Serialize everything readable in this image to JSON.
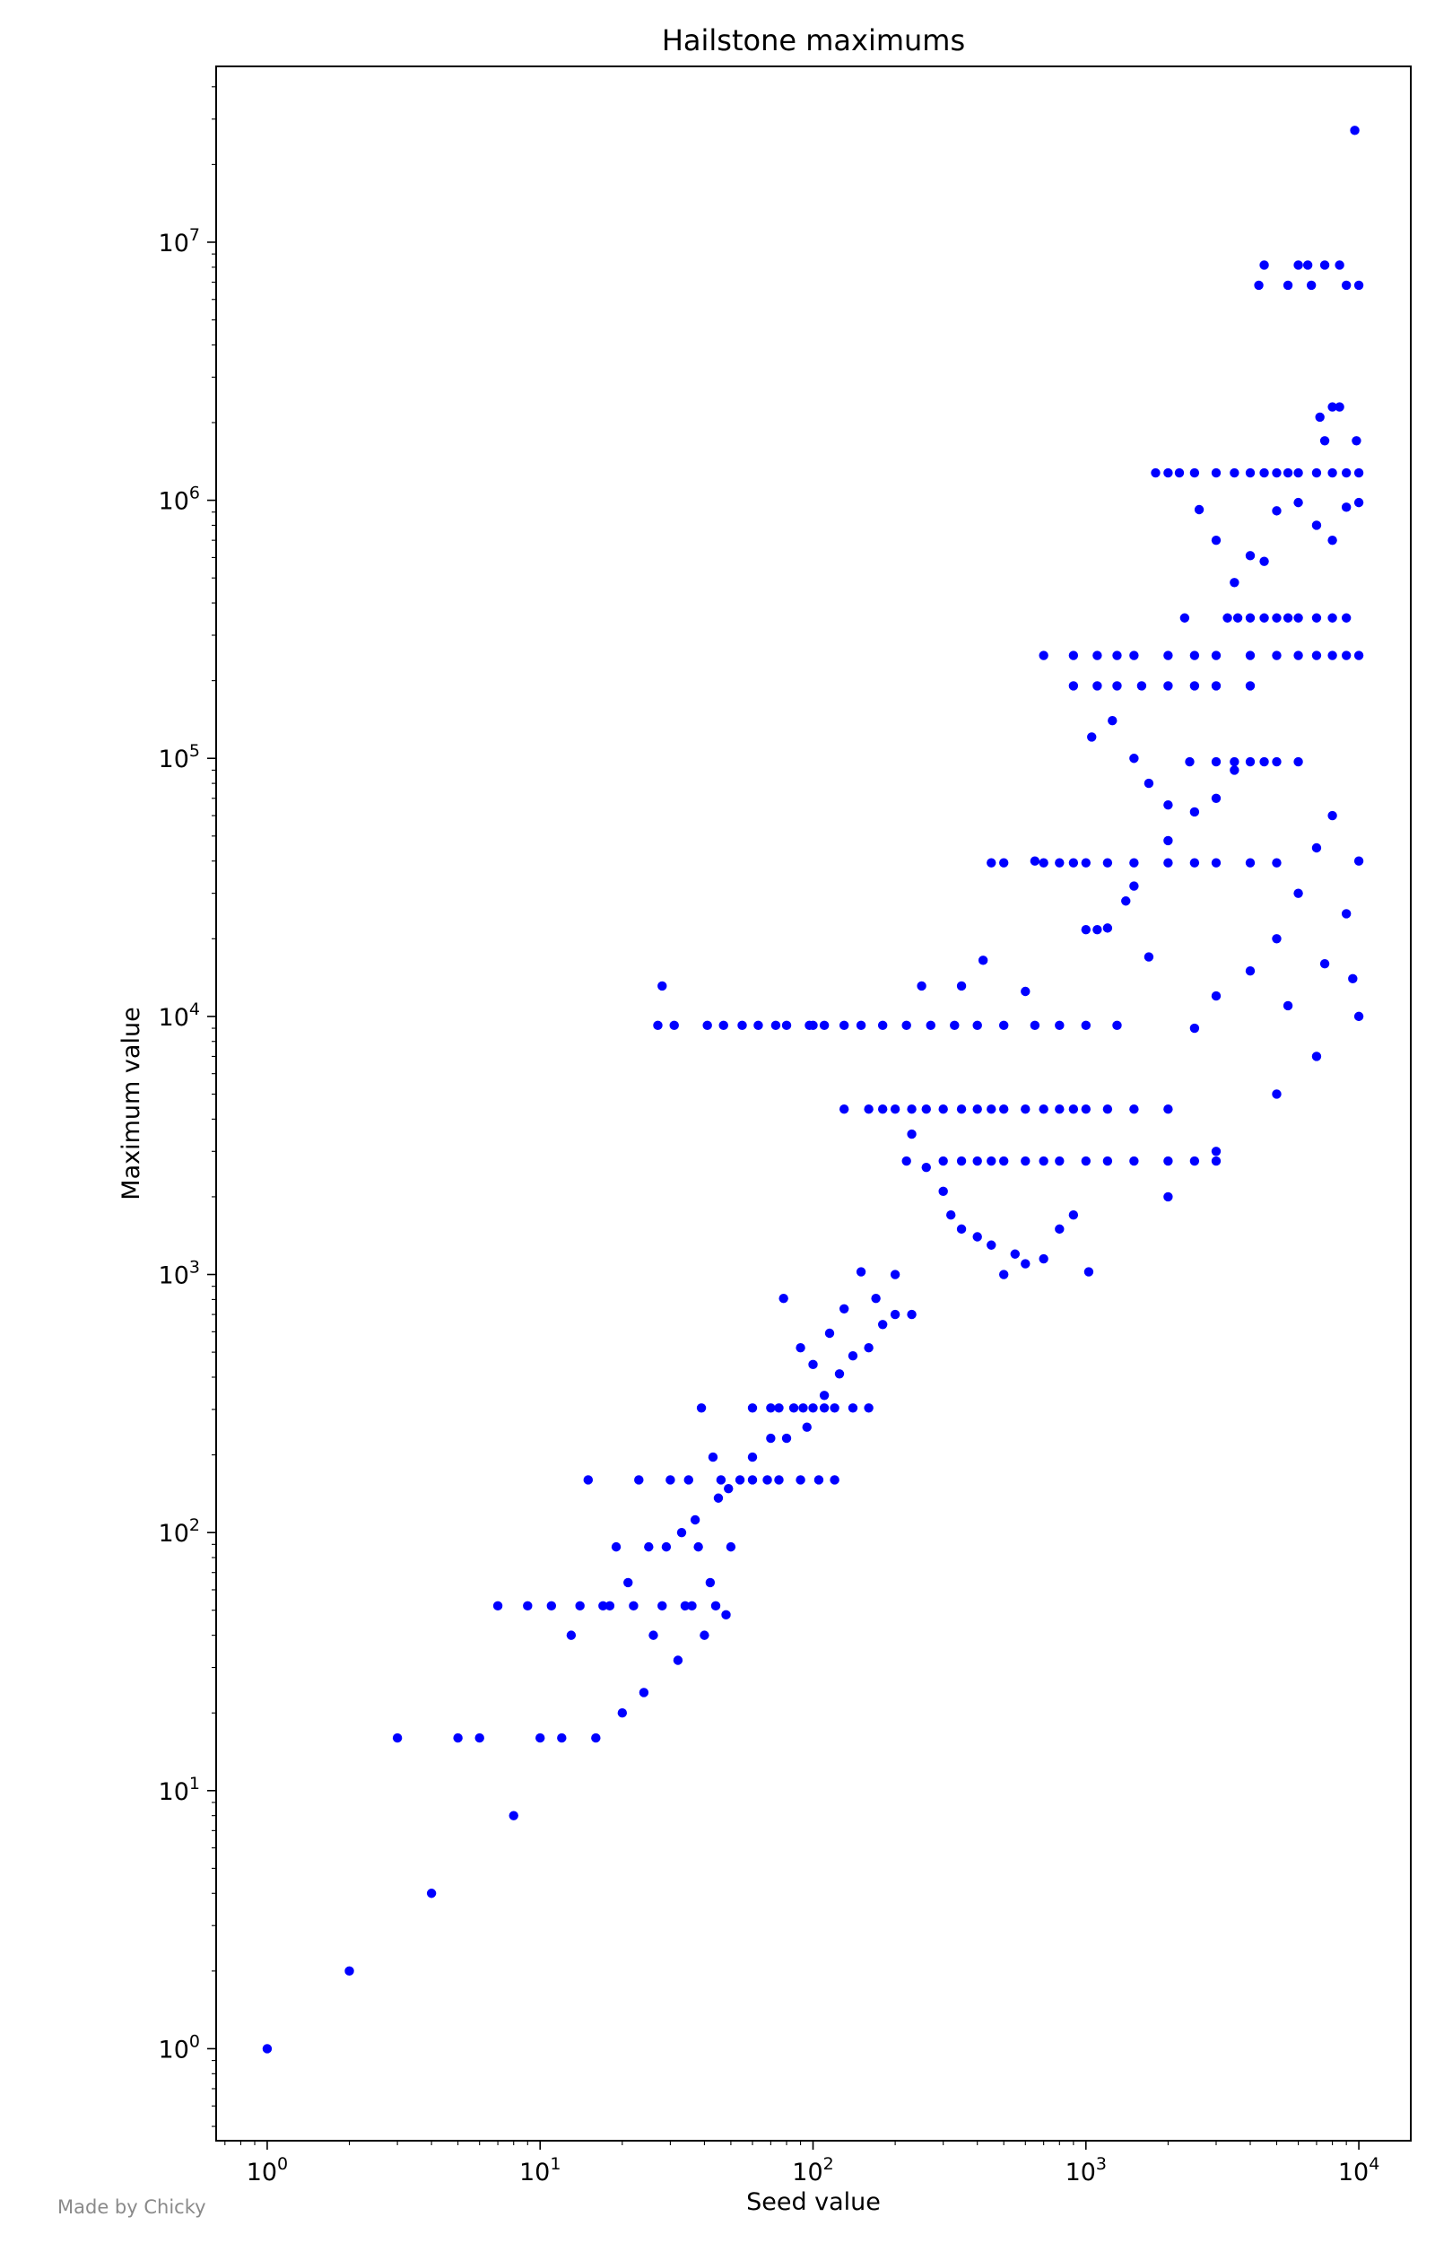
{
  "chart_data": {
    "type": "scatter",
    "title": "Hailstone maximums",
    "xlabel": "Seed value",
    "ylabel": "Maximum value",
    "xscale": "log",
    "yscale": "log",
    "xlim": [
      0.65,
      15500
    ],
    "ylim": [
      0.44,
      48000000
    ],
    "grid": false,
    "legend": "none",
    "marker_color": "#0000ff",
    "x_ticks": [
      {
        "value": 1,
        "base": "10",
        "exp": "0"
      },
      {
        "value": 10,
        "base": "10",
        "exp": "1"
      },
      {
        "value": 100,
        "base": "10",
        "exp": "2"
      },
      {
        "value": 1000,
        "base": "10",
        "exp": "3"
      },
      {
        "value": 10000,
        "base": "10",
        "exp": "4"
      }
    ],
    "y_ticks": [
      {
        "value": 1,
        "base": "10",
        "exp": "0"
      },
      {
        "value": 10,
        "base": "10",
        "exp": "1"
      },
      {
        "value": 100,
        "base": "10",
        "exp": "2"
      },
      {
        "value": 1000,
        "base": "10",
        "exp": "3"
      },
      {
        "value": 10000,
        "base": "10",
        "exp": "4"
      },
      {
        "value": 100000,
        "base": "10",
        "exp": "5"
      },
      {
        "value": 1000000,
        "base": "10",
        "exp": "6"
      },
      {
        "value": 10000000,
        "base": "10",
        "exp": "7"
      }
    ],
    "series": [
      {
        "x": [
          1,
          2,
          3,
          4,
          5,
          6,
          7,
          8,
          9,
          10,
          11,
          12,
          13,
          14,
          15,
          16,
          17,
          18,
          19,
          20,
          21,
          22,
          23,
          24,
          25,
          26,
          27,
          28,
          29,
          30,
          31,
          32,
          33,
          34,
          35,
          36,
          37,
          38,
          39,
          40,
          41,
          42,
          43,
          44,
          45,
          46,
          47,
          48,
          49,
          50
        ],
        "y": [
          1,
          2,
          16,
          4,
          16,
          16,
          52,
          8,
          52,
          16,
          52,
          16,
          40,
          52,
          160,
          16,
          52,
          52,
          88,
          20,
          64,
          52,
          160,
          24,
          88,
          40,
          9232,
          52,
          88,
          160,
          9232,
          32,
          100,
          52,
          160,
          52,
          112,
          88,
          304,
          40,
          9232,
          64,
          196,
          52,
          136,
          160,
          9232,
          48,
          148,
          88
        ]
      }
    ],
    "sample_points": [
      [
        55,
        9232
      ],
      [
        63,
        9232
      ],
      [
        73,
        9232
      ],
      [
        80,
        9232
      ],
      [
        97,
        9232
      ],
      [
        100,
        9232
      ],
      [
        110,
        9232
      ],
      [
        130,
        9232
      ],
      [
        150,
        9232
      ],
      [
        180,
        9232
      ],
      [
        220,
        9232
      ],
      [
        270,
        9232
      ],
      [
        330,
        9232
      ],
      [
        400,
        9232
      ],
      [
        500,
        9232
      ],
      [
        650,
        9232
      ],
      [
        800,
        9232
      ],
      [
        1000,
        9232
      ],
      [
        1300,
        9232
      ],
      [
        60,
        304
      ],
      [
        70,
        304
      ],
      [
        75,
        304
      ],
      [
        85,
        304
      ],
      [
        92,
        304
      ],
      [
        100,
        304
      ],
      [
        110,
        304
      ],
      [
        120,
        304
      ],
      [
        140,
        304
      ],
      [
        160,
        304
      ],
      [
        54,
        160
      ],
      [
        60,
        160
      ],
      [
        68,
        160
      ],
      [
        75,
        160
      ],
      [
        90,
        160
      ],
      [
        105,
        160
      ],
      [
        120,
        160
      ],
      [
        60,
        196
      ],
      [
        70,
        232
      ],
      [
        80,
        232
      ],
      [
        95,
        256
      ],
      [
        110,
        340
      ],
      [
        125,
        412
      ],
      [
        140,
        484
      ],
      [
        160,
        520
      ],
      [
        180,
        640
      ],
      [
        200,
        700
      ],
      [
        78,
        808
      ],
      [
        90,
        520
      ],
      [
        100,
        448
      ],
      [
        115,
        592
      ],
      [
        130,
        736
      ],
      [
        150,
        1024
      ],
      [
        170,
        808
      ],
      [
        200,
        1000
      ],
      [
        230,
        700
      ],
      [
        28,
        13120
      ],
      [
        250,
        13120
      ],
      [
        350,
        13120
      ],
      [
        420,
        16500
      ],
      [
        600,
        12500
      ],
      [
        130,
        4372
      ],
      [
        160,
        4372
      ],
      [
        180,
        4372
      ],
      [
        200,
        4372
      ],
      [
        230,
        4372
      ],
      [
        260,
        4372
      ],
      [
        300,
        4372
      ],
      [
        350,
        4372
      ],
      [
        400,
        4372
      ],
      [
        450,
        4372
      ],
      [
        500,
        4372
      ],
      [
        600,
        4372
      ],
      [
        700,
        4372
      ],
      [
        800,
        4372
      ],
      [
        900,
        4372
      ],
      [
        1000,
        4372
      ],
      [
        1200,
        4372
      ],
      [
        1500,
        4372
      ],
      [
        2000,
        4372
      ],
      [
        220,
        2752
      ],
      [
        300,
        2752
      ],
      [
        350,
        2752
      ],
      [
        400,
        2752
      ],
      [
        450,
        2752
      ],
      [
        500,
        2752
      ],
      [
        600,
        2752
      ],
      [
        700,
        2752
      ],
      [
        800,
        2752
      ],
      [
        1000,
        2752
      ],
      [
        1200,
        2752
      ],
      [
        1500,
        2752
      ],
      [
        2000,
        2752
      ],
      [
        2500,
        2752
      ],
      [
        3000,
        2752
      ],
      [
        230,
        3500
      ],
      [
        260,
        2600
      ],
      [
        300,
        2100
      ],
      [
        320,
        1700
      ],
      [
        350,
        1500
      ],
      [
        400,
        1400
      ],
      [
        450,
        1300
      ],
      [
        500,
        1000
      ],
      [
        550,
        1200
      ],
      [
        600,
        1100
      ],
      [
        700,
        1150
      ],
      [
        800,
        1500
      ],
      [
        900,
        1700
      ],
      [
        450,
        39364
      ],
      [
        500,
        39364
      ],
      [
        650,
        40000
      ],
      [
        700,
        39364
      ],
      [
        800,
        39364
      ],
      [
        900,
        39364
      ],
      [
        1000,
        39364
      ],
      [
        1200,
        39364
      ],
      [
        1500,
        39364
      ],
      [
        2000,
        39364
      ],
      [
        2500,
        39364
      ],
      [
        3000,
        39364
      ],
      [
        4000,
        39364
      ],
      [
        5000,
        39364
      ],
      [
        700,
        250504
      ],
      [
        900,
        250504
      ],
      [
        1100,
        250504
      ],
      [
        1300,
        250504
      ],
      [
        1500,
        250504
      ],
      [
        2000,
        250504
      ],
      [
        2500,
        250504
      ],
      [
        3000,
        250504
      ],
      [
        4000,
        250504
      ],
      [
        5000,
        250504
      ],
      [
        6000,
        250504
      ],
      [
        7000,
        250504
      ],
      [
        8000,
        250504
      ],
      [
        9000,
        250504
      ],
      [
        10000,
        250504
      ],
      [
        900,
        190996
      ],
      [
        1100,
        190996
      ],
      [
        1300,
        190996
      ],
      [
        1600,
        190996
      ],
      [
        2000,
        190996
      ],
      [
        2500,
        190996
      ],
      [
        3000,
        190996
      ],
      [
        4000,
        190996
      ],
      [
        1000,
        21688
      ],
      [
        1100,
        21688
      ],
      [
        1200,
        22000
      ],
      [
        1400,
        28000
      ],
      [
        1500,
        32000
      ],
      [
        1700,
        17000
      ],
      [
        2000,
        48000
      ],
      [
        2500,
        62000
      ],
      [
        3000,
        70000
      ],
      [
        3500,
        90000
      ],
      [
        1050,
        121000
      ],
      [
        1250,
        140000
      ],
      [
        1500,
        100000
      ],
      [
        1700,
        80000
      ],
      [
        2000,
        66000
      ],
      [
        2400,
        97000
      ],
      [
        3000,
        97000
      ],
      [
        3500,
        97000
      ],
      [
        4000,
        97000
      ],
      [
        4500,
        97000
      ],
      [
        5000,
        97000
      ],
      [
        6000,
        97000
      ],
      [
        1800,
        1276936
      ],
      [
        2000,
        1276936
      ],
      [
        2200,
        1276936
      ],
      [
        2500,
        1276936
      ],
      [
        3000,
        1276936
      ],
      [
        3500,
        1276936
      ],
      [
        4000,
        1276936
      ],
      [
        4500,
        1276936
      ],
      [
        5000,
        1276936
      ],
      [
        5500,
        1276936
      ],
      [
        6000,
        1276936
      ],
      [
        7000,
        1276936
      ],
      [
        8000,
        1276936
      ],
      [
        9000,
        1276936
      ],
      [
        10000,
        1276936
      ],
      [
        2300,
        350000
      ],
      [
        3000,
        700000
      ],
      [
        3300,
        350000
      ],
      [
        3600,
        350000
      ],
      [
        4000,
        350000
      ],
      [
        4500,
        350000
      ],
      [
        5000,
        350000
      ],
      [
        5500,
        350000
      ],
      [
        6000,
        350000
      ],
      [
        7000,
        350000
      ],
      [
        8000,
        350000
      ],
      [
        9000,
        350000
      ],
      [
        2600,
        920000
      ],
      [
        3500,
        480000
      ],
      [
        4000,
        610000
      ],
      [
        4500,
        580000
      ],
      [
        5000,
        910000
      ],
      [
        6000,
        980000
      ],
      [
        7000,
        800000
      ],
      [
        8000,
        700000
      ],
      [
        9000,
        940000
      ],
      [
        10000,
        980000
      ],
      [
        4300,
        6810688
      ],
      [
        4500,
        8153620
      ],
      [
        5500,
        6810688
      ],
      [
        6000,
        8153620
      ],
      [
        6500,
        8153620
      ],
      [
        6700,
        6810688
      ],
      [
        7500,
        8153620
      ],
      [
        8500,
        8153620
      ],
      [
        9000,
        6810688
      ],
      [
        10000,
        6810688
      ],
      [
        7200,
        2100000
      ],
      [
        7500,
        1700000
      ],
      [
        8000,
        2300000
      ],
      [
        8500,
        2300000
      ],
      [
        9800,
        1700000
      ],
      [
        9663,
        27114424
      ],
      [
        5000,
        20000
      ],
      [
        6000,
        30000
      ],
      [
        7000,
        45000
      ],
      [
        8000,
        60000
      ],
      [
        9000,
        25000
      ],
      [
        10000,
        40000
      ],
      [
        4000,
        15000
      ],
      [
        3000,
        12000
      ],
      [
        2500,
        9000
      ],
      [
        5500,
        11000
      ],
      [
        7500,
        16000
      ],
      [
        9500,
        14000
      ],
      [
        1024,
        1024
      ],
      [
        2000,
        2000
      ],
      [
        3000,
        3000
      ],
      [
        5000,
        5000
      ],
      [
        7000,
        7000
      ],
      [
        10000,
        10000
      ]
    ]
  },
  "credit": "Made by Chicky"
}
